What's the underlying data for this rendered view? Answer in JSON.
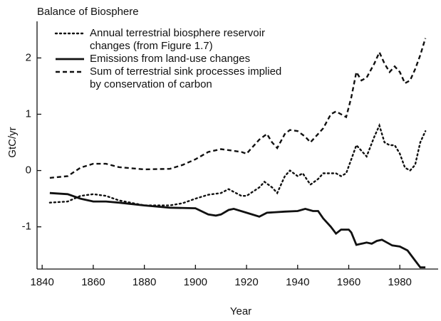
{
  "chart_data": {
    "type": "line",
    "title": "Balance of Biosphere",
    "xlabel": "Year",
    "ylabel": "GtC/yr",
    "xlim": [
      1838,
      1995
    ],
    "ylim": [
      -1.75,
      2.65
    ],
    "xticks": [
      1840,
      1860,
      1880,
      1900,
      1920,
      1940,
      1960,
      1980
    ],
    "yticks": [
      -1,
      0,
      1,
      2
    ],
    "grid": false,
    "legend": "upper left",
    "series": [
      {
        "name": "Annual terrestrial biosphere reservoir\nchanges (from Figure 1.7)",
        "color": "#111111",
        "style": "dotted",
        "x": [
          1843,
          1850,
          1855,
          1860,
          1865,
          1870,
          1880,
          1890,
          1895,
          1900,
          1905,
          1910,
          1913,
          1915,
          1918,
          1920,
          1925,
          1927,
          1930,
          1932,
          1935,
          1937,
          1940,
          1942,
          1945,
          1948,
          1950,
          1955,
          1957,
          1959,
          1961,
          1963,
          1965,
          1967,
          1970,
          1972,
          1974,
          1976,
          1978,
          1980,
          1982,
          1984,
          1986,
          1988,
          1990
        ],
        "values": [
          -0.57,
          -0.55,
          -0.45,
          -0.42,
          -0.45,
          -0.53,
          -0.62,
          -0.62,
          -0.58,
          -0.5,
          -0.43,
          -0.4,
          -0.33,
          -0.38,
          -0.45,
          -0.45,
          -0.3,
          -0.2,
          -0.3,
          -0.4,
          -0.1,
          0.0,
          -0.1,
          -0.05,
          -0.25,
          -0.15,
          -0.05,
          -0.05,
          -0.1,
          -0.05,
          0.2,
          0.45,
          0.35,
          0.25,
          0.6,
          0.8,
          0.5,
          0.45,
          0.45,
          0.3,
          0.05,
          0.0,
          0.1,
          0.5,
          0.7
        ]
      },
      {
        "name": "Emissions from land-use changes",
        "color": "#111111",
        "style": "solid",
        "x": [
          1843,
          1850,
          1855,
          1860,
          1865,
          1870,
          1880,
          1890,
          1900,
          1905,
          1908,
          1910,
          1913,
          1915,
          1920,
          1925,
          1928,
          1935,
          1940,
          1943,
          1946,
          1948,
          1950,
          1953,
          1955,
          1957,
          1960,
          1961,
          1963,
          1965,
          1967,
          1969,
          1971,
          1973,
          1975,
          1977,
          1980,
          1983,
          1986,
          1988,
          1990
        ],
        "values": [
          -0.4,
          -0.42,
          -0.5,
          -0.55,
          -0.55,
          -0.57,
          -0.62,
          -0.66,
          -0.67,
          -0.78,
          -0.8,
          -0.78,
          -0.7,
          -0.68,
          -0.75,
          -0.82,
          -0.75,
          -0.73,
          -0.72,
          -0.68,
          -0.72,
          -0.72,
          -0.85,
          -1.0,
          -1.12,
          -1.05,
          -1.05,
          -1.1,
          -1.32,
          -1.3,
          -1.28,
          -1.3,
          -1.25,
          -1.23,
          -1.28,
          -1.33,
          -1.35,
          -1.42,
          -1.6,
          -1.72,
          -1.72
        ]
      },
      {
        "name": "Sum of terrestrial sink processes implied\nby conservation of carbon",
        "color": "#111111",
        "style": "dashed",
        "x": [
          1843,
          1850,
          1855,
          1860,
          1865,
          1870,
          1880,
          1890,
          1895,
          1900,
          1905,
          1910,
          1915,
          1918,
          1920,
          1925,
          1928,
          1930,
          1932,
          1935,
          1937,
          1940,
          1943,
          1945,
          1948,
          1950,
          1953,
          1955,
          1957,
          1959,
          1961,
          1963,
          1965,
          1967,
          1970,
          1972,
          1974,
          1976,
          1978,
          1980,
          1982,
          1984,
          1986,
          1988,
          1990
        ],
        "values": [
          -0.13,
          -0.1,
          0.05,
          0.12,
          0.12,
          0.06,
          0.02,
          0.03,
          0.1,
          0.2,
          0.33,
          0.38,
          0.35,
          0.33,
          0.3,
          0.55,
          0.65,
          0.5,
          0.4,
          0.65,
          0.72,
          0.7,
          0.6,
          0.5,
          0.65,
          0.75,
          1.0,
          1.05,
          1.0,
          0.95,
          1.3,
          1.75,
          1.6,
          1.65,
          1.9,
          2.1,
          1.9,
          1.75,
          1.85,
          1.75,
          1.55,
          1.6,
          1.8,
          2.05,
          2.35
        ]
      }
    ]
  }
}
